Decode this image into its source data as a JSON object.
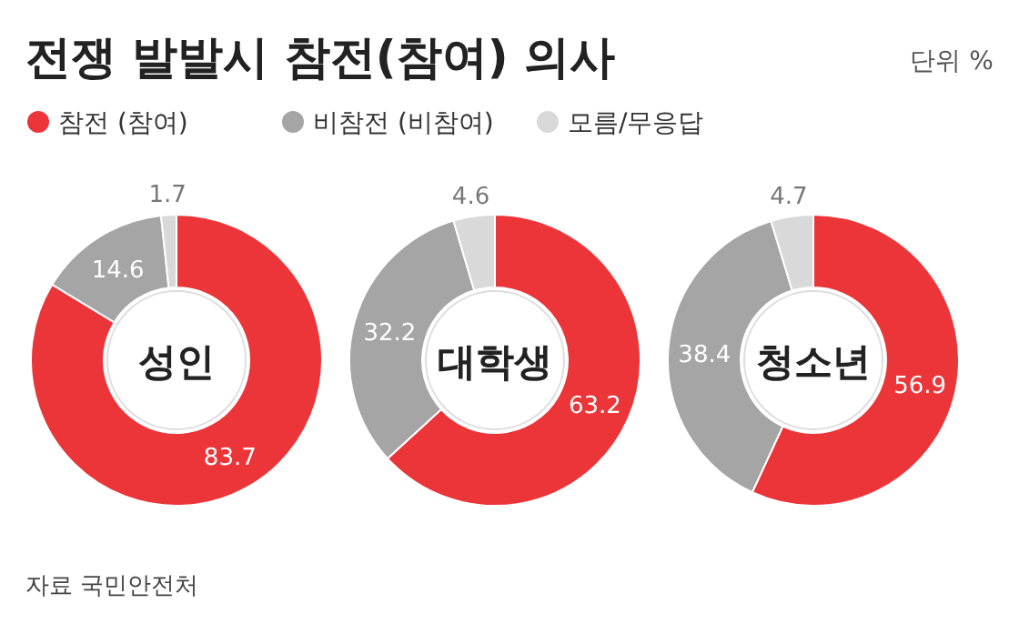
{
  "chart_data": [
    {
      "type": "other",
      "title": "전쟁 발발시 참전(참여) 의사",
      "annotations": [
        "단위 %",
        "자료 국민안전처"
      ]
    },
    {
      "type": "donut",
      "title": "성인",
      "categories": [
        "참전 (참여)",
        "비참전 (비참여)",
        "모름/무응답"
      ],
      "values": [
        83.7,
        14.6,
        1.7
      ],
      "colors": [
        "#ec3539",
        "#a5a5a5",
        "#d9d9d9"
      ],
      "data_labels": true,
      "legend": "top"
    },
    {
      "type": "donut",
      "title": "대학생",
      "categories": [
        null,
        null,
        null
      ],
      "values": [
        63.2,
        32.2,
        4.6
      ],
      "colors": [
        "#ec3539",
        "#a5a5a5",
        "#d9d9d9"
      ],
      "data_labels": true,
      "legend": false
    },
    {
      "type": "donut",
      "title": "청소년",
      "categories": [
        null,
        null,
        null
      ],
      "values": [
        56.9,
        38.4,
        4.7
      ],
      "colors": [
        "#ec3539",
        "#a5a5a5",
        "#d9d9d9"
      ],
      "data_labels": true,
      "legend": false
    }
  ]
}
